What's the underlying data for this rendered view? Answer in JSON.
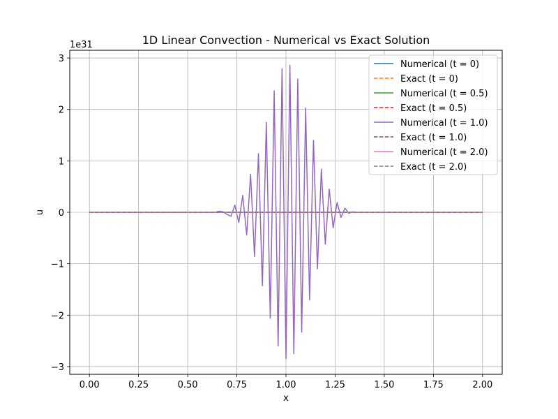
{
  "chart_data": {
    "type": "line",
    "title": "1D Linear Convection - Numerical vs Exact Solution",
    "xlabel": "x",
    "ylabel": "u",
    "y_offset_text": "1e31",
    "y_scale_factor": 1e+31,
    "xlim": [
      -0.1,
      2.1
    ],
    "ylim": [
      -3.15,
      3.15
    ],
    "xticks": [
      0.0,
      0.25,
      0.5,
      0.75,
      1.0,
      1.25,
      1.5,
      1.75,
      2.0
    ],
    "xtick_labels": [
      "0.00",
      "0.25",
      "0.50",
      "0.75",
      "1.00",
      "1.25",
      "1.50",
      "1.75",
      "2.00"
    ],
    "yticks": [
      -3,
      -2,
      -1,
      0,
      1,
      2,
      3
    ],
    "ytick_labels": [
      "−3",
      "−2",
      "−1",
      "0",
      "1",
      "2",
      "3"
    ],
    "grid": true,
    "legend_position": "top-right",
    "oscillation": {
      "x": [
        0.64,
        0.66,
        0.68,
        0.7,
        0.72,
        0.74,
        0.76,
        0.78,
        0.8,
        0.82,
        0.84,
        0.86,
        0.88,
        0.9,
        0.92,
        0.94,
        0.96,
        0.98,
        1.0,
        1.02,
        1.04,
        1.06,
        1.08,
        1.1,
        1.12,
        1.14,
        1.16,
        1.18,
        1.2,
        1.22,
        1.24,
        1.26,
        1.28,
        1.3,
        1.32,
        1.34,
        1.36
      ],
      "y": [
        0.0,
        0.02,
        0.01,
        -0.04,
        -0.08,
        0.14,
        -0.2,
        0.33,
        -0.44,
        0.74,
        -0.86,
        1.14,
        -1.43,
        1.75,
        -2.06,
        2.36,
        -2.6,
        2.79,
        -2.85,
        2.86,
        -2.75,
        2.59,
        -2.33,
        2.03,
        -1.7,
        1.4,
        -1.1,
        0.84,
        -0.62,
        0.45,
        -0.3,
        0.19,
        -0.1,
        0.08,
        -0.02,
        0.01,
        0.0
      ]
    },
    "series": [
      {
        "name": "Numerical (t = 0)",
        "style": "solid",
        "color": "#1f77b4",
        "x": [
          0,
          2
        ],
        "y": [
          0,
          0
        ]
      },
      {
        "name": "Exact (t = 0)",
        "style": "dashed",
        "color": "#ff7f0e",
        "x": [
          0,
          2
        ],
        "y": [
          0,
          0
        ]
      },
      {
        "name": "Numerical (t = 0.5)",
        "style": "solid",
        "color": "#2ca02c",
        "x": [
          0,
          2
        ],
        "y": [
          0,
          0
        ]
      },
      {
        "name": "Exact (t = 0.5)",
        "style": "dashed",
        "color": "#d62728",
        "x": [
          0,
          2
        ],
        "y": [
          0,
          0
        ]
      },
      {
        "name": "Numerical (t = 1.0)",
        "style": "solid",
        "color": "#9467bd",
        "uses_oscillation": true
      },
      {
        "name": "Exact (t = 1.0)",
        "style": "dashed",
        "color": "#8c564b",
        "x": [
          0,
          2
        ],
        "y": [
          0,
          0
        ]
      },
      {
        "name": "Numerical (t = 2.0)",
        "style": "solid",
        "color": "#e377c2",
        "x": [
          0,
          2
        ],
        "y": [
          0,
          0
        ]
      },
      {
        "name": "Exact (t = 2.0)",
        "style": "dashed",
        "color": "#7f7f7f",
        "x": [
          0,
          2
        ],
        "y": [
          0,
          0
        ]
      }
    ]
  }
}
